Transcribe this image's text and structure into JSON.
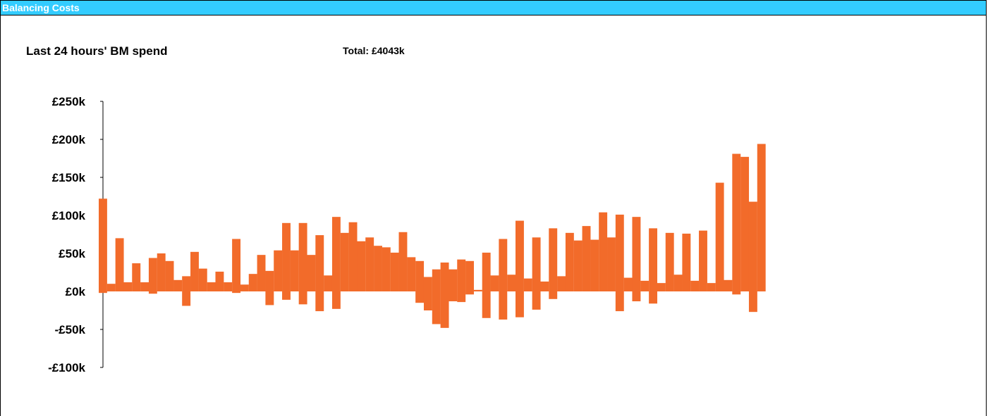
{
  "header": {
    "title": "Balancing Costs"
  },
  "chart_header": {
    "subtitle": "Last 24 hours' BM spend",
    "total": "Total: £4043k"
  },
  "colors": {
    "header_bg": "#33ccff",
    "bar": "#f26b2a"
  },
  "chart_data": {
    "type": "bar",
    "title": "",
    "xlabel": "",
    "ylabel": "",
    "ylim": [
      -100,
      250
    ],
    "yticks": [
      {
        "value": 250,
        "label": "£250k"
      },
      {
        "value": 200,
        "label": "£200k"
      },
      {
        "value": 150,
        "label": "£150k"
      },
      {
        "value": 100,
        "label": "£100k"
      },
      {
        "value": 50,
        "label": "£50k"
      },
      {
        "value": 0,
        "label": "£0k"
      },
      {
        "value": -50,
        "label": "-£50k"
      },
      {
        "value": -100,
        "label": "-£100k"
      }
    ],
    "grid": false,
    "bars": [
      {
        "top": 122,
        "bottom": -2
      },
      {
        "top": 10,
        "bottom": 0
      },
      {
        "top": 70,
        "bottom": 0
      },
      {
        "top": 12,
        "bottom": 0
      },
      {
        "top": 37,
        "bottom": 0
      },
      {
        "top": 12,
        "bottom": 0
      },
      {
        "top": 44,
        "bottom": -3
      },
      {
        "top": 50,
        "bottom": 0
      },
      {
        "top": 40,
        "bottom": 0
      },
      {
        "top": 15,
        "bottom": 0
      },
      {
        "top": 20,
        "bottom": -19
      },
      {
        "top": 52,
        "bottom": 0
      },
      {
        "top": 30,
        "bottom": 0
      },
      {
        "top": 12,
        "bottom": 0
      },
      {
        "top": 26,
        "bottom": 0
      },
      {
        "top": 12,
        "bottom": 0
      },
      {
        "top": 69,
        "bottom": -2
      },
      {
        "top": 9,
        "bottom": 0
      },
      {
        "top": 23,
        "bottom": 0
      },
      {
        "top": 48,
        "bottom": 0
      },
      {
        "top": 27,
        "bottom": -18
      },
      {
        "top": 54,
        "bottom": 0
      },
      {
        "top": 90,
        "bottom": -11
      },
      {
        "top": 54,
        "bottom": 0
      },
      {
        "top": 90,
        "bottom": -17
      },
      {
        "top": 48,
        "bottom": 0
      },
      {
        "top": 74,
        "bottom": -26
      },
      {
        "top": 21,
        "bottom": 0
      },
      {
        "top": 98,
        "bottom": -23
      },
      {
        "top": 77,
        "bottom": 0
      },
      {
        "top": 91,
        "bottom": 0
      },
      {
        "top": 66,
        "bottom": 0
      },
      {
        "top": 71,
        "bottom": 0
      },
      {
        "top": 60,
        "bottom": 0
      },
      {
        "top": 58,
        "bottom": 0
      },
      {
        "top": 51,
        "bottom": 0
      },
      {
        "top": 78,
        "bottom": 0
      },
      {
        "top": 45,
        "bottom": 0
      },
      {
        "top": 40,
        "bottom": -15
      },
      {
        "top": 19,
        "bottom": -25
      },
      {
        "top": 29,
        "bottom": -43
      },
      {
        "top": 38,
        "bottom": -48
      },
      {
        "top": 29,
        "bottom": -13
      },
      {
        "top": 42,
        "bottom": -14
      },
      {
        "top": 40,
        "bottom": -4
      },
      {
        "top": 2,
        "bottom": 0
      },
      {
        "top": 51,
        "bottom": -35
      },
      {
        "top": 21,
        "bottom": 0
      },
      {
        "top": 69,
        "bottom": -37
      },
      {
        "top": 22,
        "bottom": 0
      },
      {
        "top": 93,
        "bottom": -34
      },
      {
        "top": 17,
        "bottom": 0
      },
      {
        "top": 71,
        "bottom": -24
      },
      {
        "top": 13,
        "bottom": 0
      },
      {
        "top": 83,
        "bottom": -10
      },
      {
        "top": 20,
        "bottom": 0
      },
      {
        "top": 77,
        "bottom": 0
      },
      {
        "top": 67,
        "bottom": 0
      },
      {
        "top": 86,
        "bottom": 0
      },
      {
        "top": 68,
        "bottom": 0
      },
      {
        "top": 104,
        "bottom": 0
      },
      {
        "top": 71,
        "bottom": 0
      },
      {
        "top": 101,
        "bottom": -26
      },
      {
        "top": 18,
        "bottom": 0
      },
      {
        "top": 98,
        "bottom": -13
      },
      {
        "top": 14,
        "bottom": 0
      },
      {
        "top": 83,
        "bottom": -16
      },
      {
        "top": 11,
        "bottom": 0
      },
      {
        "top": 77,
        "bottom": 0
      },
      {
        "top": 22,
        "bottom": 0
      },
      {
        "top": 76,
        "bottom": 0
      },
      {
        "top": 14,
        "bottom": 0
      },
      {
        "top": 80,
        "bottom": 0
      },
      {
        "top": 11,
        "bottom": 0
      },
      {
        "top": 143,
        "bottom": 0
      },
      {
        "top": 15,
        "bottom": 0
      },
      {
        "top": 181,
        "bottom": -4
      },
      {
        "top": 177,
        "bottom": 0
      },
      {
        "top": 118,
        "bottom": -27
      },
      {
        "top": 194,
        "bottom": 0
      }
    ]
  }
}
